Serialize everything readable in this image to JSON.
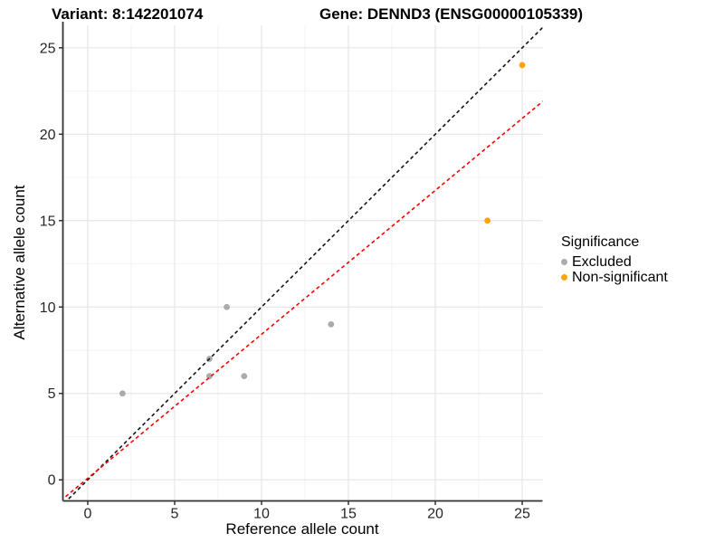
{
  "header": {
    "variant_title": "Variant: 8:142201074",
    "gene_title": "Gene: DENND3 (ENSG00000105339)"
  },
  "chart_data": {
    "type": "scatter",
    "xlabel": "Reference allele count",
    "ylabel": "Alternative allele count",
    "xlim": [
      -1.43,
      26.17
    ],
    "ylim": [
      -1.22,
      26.3
    ],
    "x_ticks": [
      0,
      5,
      10,
      15,
      20,
      25
    ],
    "y_ticks": [
      0,
      5,
      10,
      15,
      20,
      25
    ],
    "x_minor_ticks": [
      2.5,
      7.5,
      12.5,
      17.5,
      22.5
    ],
    "y_minor_ticks": [
      2.5,
      7.5,
      12.5,
      17.5,
      22.5
    ],
    "grid": "on",
    "legend_title": "Significance",
    "legend_position": "right",
    "series": [
      {
        "name": "Excluded",
        "color": "#ABABAB",
        "points": [
          [
            2,
            5
          ],
          [
            7,
            6
          ],
          [
            7,
            7
          ],
          [
            8,
            10
          ],
          [
            9,
            6
          ],
          [
            14,
            9
          ]
        ]
      },
      {
        "name": "Non-significant",
        "color": "#FFA408",
        "points": [
          [
            23,
            15
          ],
          [
            25,
            24
          ]
        ]
      }
    ],
    "lines": [
      {
        "name": "identity-line",
        "color": "#141414",
        "slope": 1,
        "intercept": 0,
        "dash": "4 3.2"
      },
      {
        "name": "regression-line",
        "color": "#FF0000",
        "slope": 0.833,
        "intercept": 0.09,
        "dash": "4 3.2"
      }
    ],
    "colors": {
      "axis_line": "#333333",
      "tick_text": "#262626",
      "grid_major": "#E6E6E6",
      "grid_minor": "#F2F2F2"
    }
  }
}
